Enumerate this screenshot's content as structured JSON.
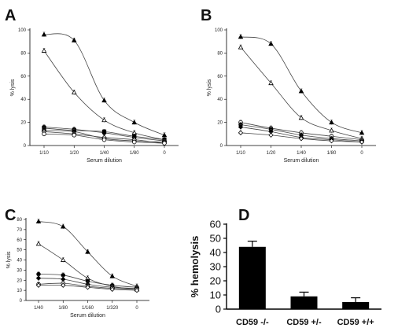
{
  "chart_data": [
    {
      "panel": "A",
      "type": "line",
      "xlabel": "Serum dilution",
      "ylabel": "% lysis",
      "categories": [
        "1/10",
        "1/20",
        "1/40",
        "1/80",
        "0"
      ],
      "ylim": [
        0,
        100
      ],
      "yticks": [
        0,
        20,
        40,
        60,
        80,
        100
      ],
      "series": [
        {
          "marker": "triangle-filled",
          "values": [
            96,
            91,
            39,
            20,
            9
          ]
        },
        {
          "marker": "triangle-open",
          "values": [
            82,
            46,
            22,
            11,
            5
          ]
        },
        {
          "marker": "circle-filled",
          "values": [
            16,
            14,
            11,
            7,
            4
          ]
        },
        {
          "marker": "square-filled",
          "values": [
            15,
            13,
            12,
            8,
            5
          ]
        },
        {
          "marker": "diamond-filled",
          "values": [
            13,
            12,
            6,
            4,
            3
          ]
        },
        {
          "marker": "diamond-open",
          "values": [
            12,
            10,
            7,
            5,
            2
          ]
        },
        {
          "marker": "circle-open",
          "values": [
            10,
            9,
            5,
            3,
            2
          ]
        }
      ]
    },
    {
      "panel": "B",
      "type": "line",
      "xlabel": "Serum dilution",
      "ylabel": "% lysis",
      "categories": [
        "1/10",
        "1/20",
        "1/40",
        "1/80",
        "0"
      ],
      "ylim": [
        0,
        100
      ],
      "yticks": [
        0,
        20,
        40,
        60,
        80,
        100
      ],
      "series": [
        {
          "marker": "triangle-filled",
          "values": [
            94,
            88,
            47,
            20,
            11
          ]
        },
        {
          "marker": "triangle-open",
          "values": [
            85,
            54,
            24,
            13,
            6
          ]
        },
        {
          "marker": "circle-open",
          "values": [
            20,
            15,
            11,
            8,
            5
          ]
        },
        {
          "marker": "circle-filled",
          "values": [
            18,
            14,
            9,
            6,
            4
          ]
        },
        {
          "marker": "diamond-filled",
          "values": [
            16,
            12,
            7,
            5,
            3
          ]
        },
        {
          "marker": "diamond-open",
          "values": [
            11,
            9,
            6,
            4,
            3
          ]
        }
      ]
    },
    {
      "panel": "C",
      "type": "line",
      "xlabel": "Serum dilution",
      "ylabel": "% lysis",
      "categories": [
        "1/40",
        "1/80",
        "1/160",
        "1/320",
        "0"
      ],
      "ylim": [
        0,
        80
      ],
      "yticks": [
        0,
        10,
        20,
        30,
        40,
        50,
        60,
        70,
        80
      ],
      "series": [
        {
          "marker": "triangle-filled",
          "values": [
            78,
            73,
            48,
            24,
            14
          ]
        },
        {
          "marker": "triangle-open",
          "values": [
            56,
            40,
            22,
            14,
            11
          ]
        },
        {
          "marker": "circle-filled",
          "values": [
            26,
            25,
            19,
            15,
            13
          ]
        },
        {
          "marker": "diamond-filled",
          "values": [
            22,
            21,
            16,
            13,
            12
          ]
        },
        {
          "marker": "circle-open",
          "values": [
            16,
            17,
            14,
            12,
            11
          ]
        },
        {
          "marker": "diamond-open",
          "values": [
            15,
            15,
            13,
            11,
            10
          ]
        }
      ]
    },
    {
      "panel": "D",
      "type": "bar",
      "ylabel": "% hemolysis",
      "categories": [
        "CD59 -/-",
        "CD59 +/-",
        "CD59 +/+"
      ],
      "values": [
        44,
        9,
        5
      ],
      "errors": [
        4,
        3,
        3
      ],
      "ylim": [
        0,
        60
      ],
      "yticks": [
        0,
        10,
        20,
        30,
        40,
        50,
        60
      ]
    }
  ]
}
